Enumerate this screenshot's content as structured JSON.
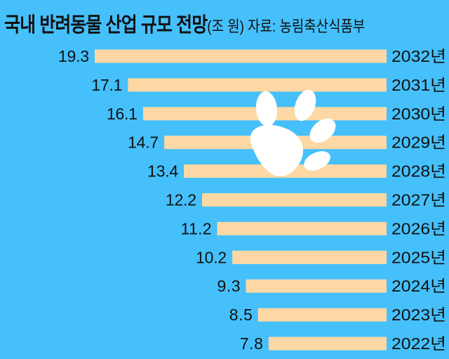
{
  "chart_data": {
    "type": "bar",
    "orientation": "horizontal",
    "title": "국내 반려동물 산업 규모 전망",
    "unit": "(조 원)",
    "source": "자료: 농림축산식품부",
    "categories": [
      "2032년",
      "2031년",
      "2030년",
      "2029년",
      "2028년",
      "2027년",
      "2026년",
      "2025년",
      "2024년",
      "2023년",
      "2022년"
    ],
    "values": [
      19.3,
      17.1,
      16.1,
      14.7,
      13.4,
      12.2,
      11.2,
      10.2,
      9.3,
      8.5,
      7.8
    ],
    "value_labels": [
      "19.3",
      "17.1",
      "16.1",
      "14.7",
      "13.4",
      "12.2",
      "11.2",
      "10.2",
      "9.3",
      "8.5",
      "7.8"
    ],
    "xlim": [
      0,
      19.3
    ],
    "grid": false,
    "colors": {
      "background": "#45c0fb",
      "bar": "#fed8a4",
      "text": "#111111",
      "paw": "#ffffff"
    },
    "decoration_icon": "paw-print-icon"
  }
}
